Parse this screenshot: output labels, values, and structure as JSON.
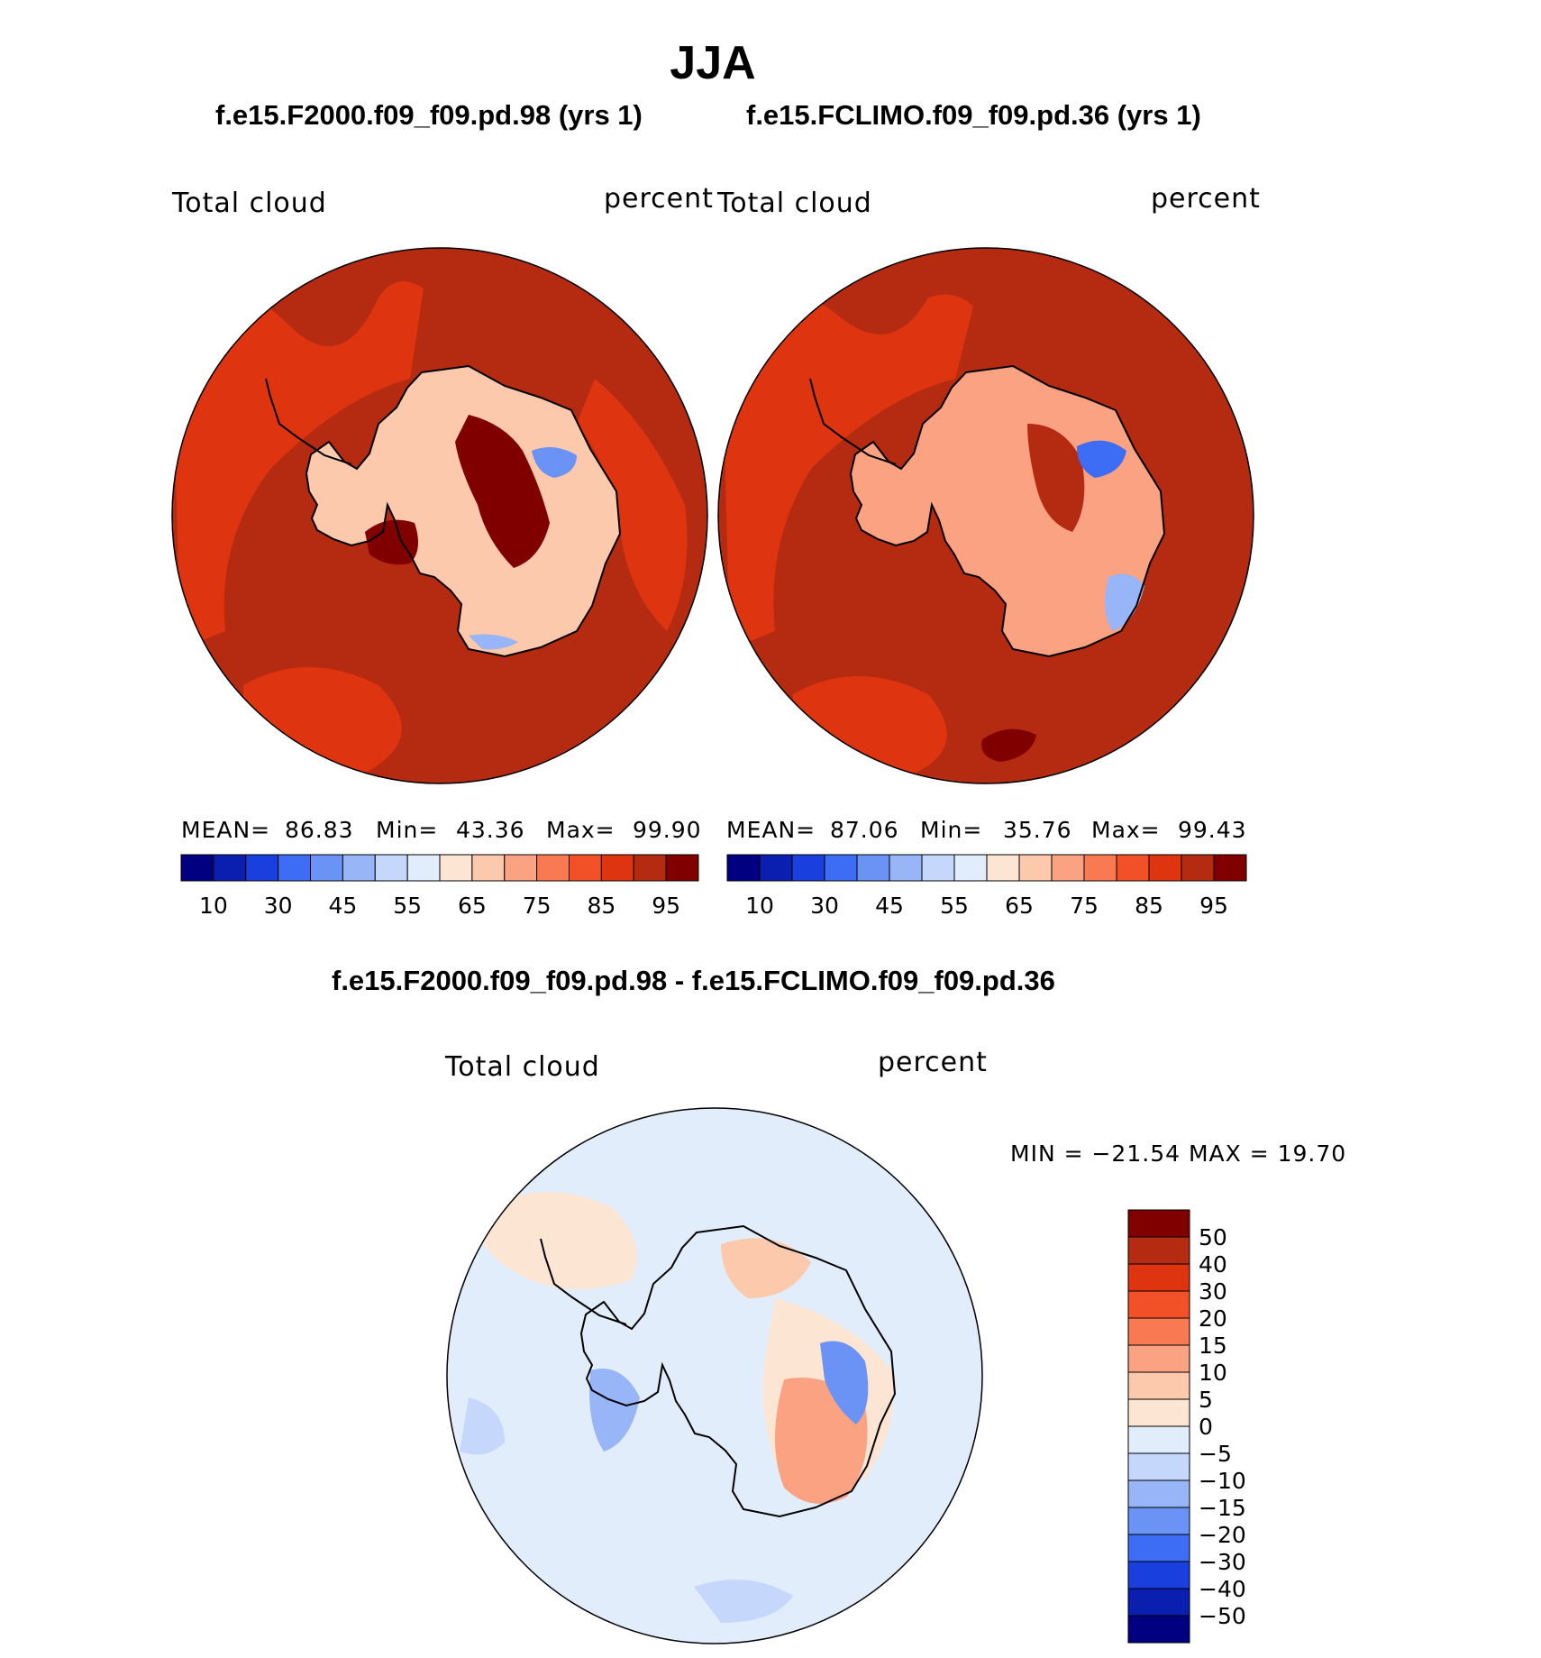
{
  "title": "JJA",
  "palette_abs": [
    "#000080",
    "#0a1fb0",
    "#1a3fdf",
    "#3d6cf5",
    "#6b93f5",
    "#98b5f7",
    "#c5d8fb",
    "#e2edfc",
    "#fde5d4",
    "#fcc9ac",
    "#fba282",
    "#f97a52",
    "#f25026",
    "#de3510",
    "#b52b12",
    "#800000"
  ],
  "palette_diff": [
    "#000080",
    "#0a1fb0",
    "#1a3fdf",
    "#3d6cf5",
    "#6b93f5",
    "#98b5f7",
    "#c5d8fb",
    "#e2edfc",
    "#fde5d4",
    "#fcc9ac",
    "#fba282",
    "#f97a52",
    "#f25026",
    "#de3510",
    "#b52b12",
    "#800000"
  ],
  "panels": [
    {
      "case": "f.e15.F2000.f09_f09.pd.98 (yrs 1)",
      "left_label": "Total cloud",
      "right_label": "percent",
      "stats": {
        "mean_label": "MEAN=",
        "mean": "86.83",
        "min_label": "Min=",
        "min": "43.36",
        "max_label": "Max=",
        "max": "99.90"
      },
      "colorbar_ticks": [
        "10",
        "30",
        "45",
        "55",
        "65",
        "75",
        "85",
        "95"
      ]
    },
    {
      "case": "f.e15.FCLIMO.f09_f09.pd.36 (yrs 1)",
      "left_label": "Total cloud",
      "right_label": "percent",
      "stats": {
        "mean_label": "MEAN=",
        "mean": "87.06",
        "min_label": "Min=",
        "min": "35.76",
        "max_label": "Max=",
        "max": "99.43"
      },
      "colorbar_ticks": [
        "10",
        "30",
        "45",
        "55",
        "65",
        "75",
        "85",
        "95"
      ]
    }
  ],
  "diff": {
    "title": "f.e15.F2000.f09_f09.pd.98 - f.e15.FCLIMO.f09_f09.pd.36",
    "left_label": "Total cloud",
    "right_label": "percent",
    "minmax": "MIN = −21.54 MAX =  19.70",
    "colorbar_labels": [
      "50",
      "40",
      "30",
      "20",
      "15",
      "10",
      "5",
      "0",
      "−5",
      "−10",
      "−15",
      "−20",
      "−30",
      "−40",
      "−50"
    ]
  }
}
